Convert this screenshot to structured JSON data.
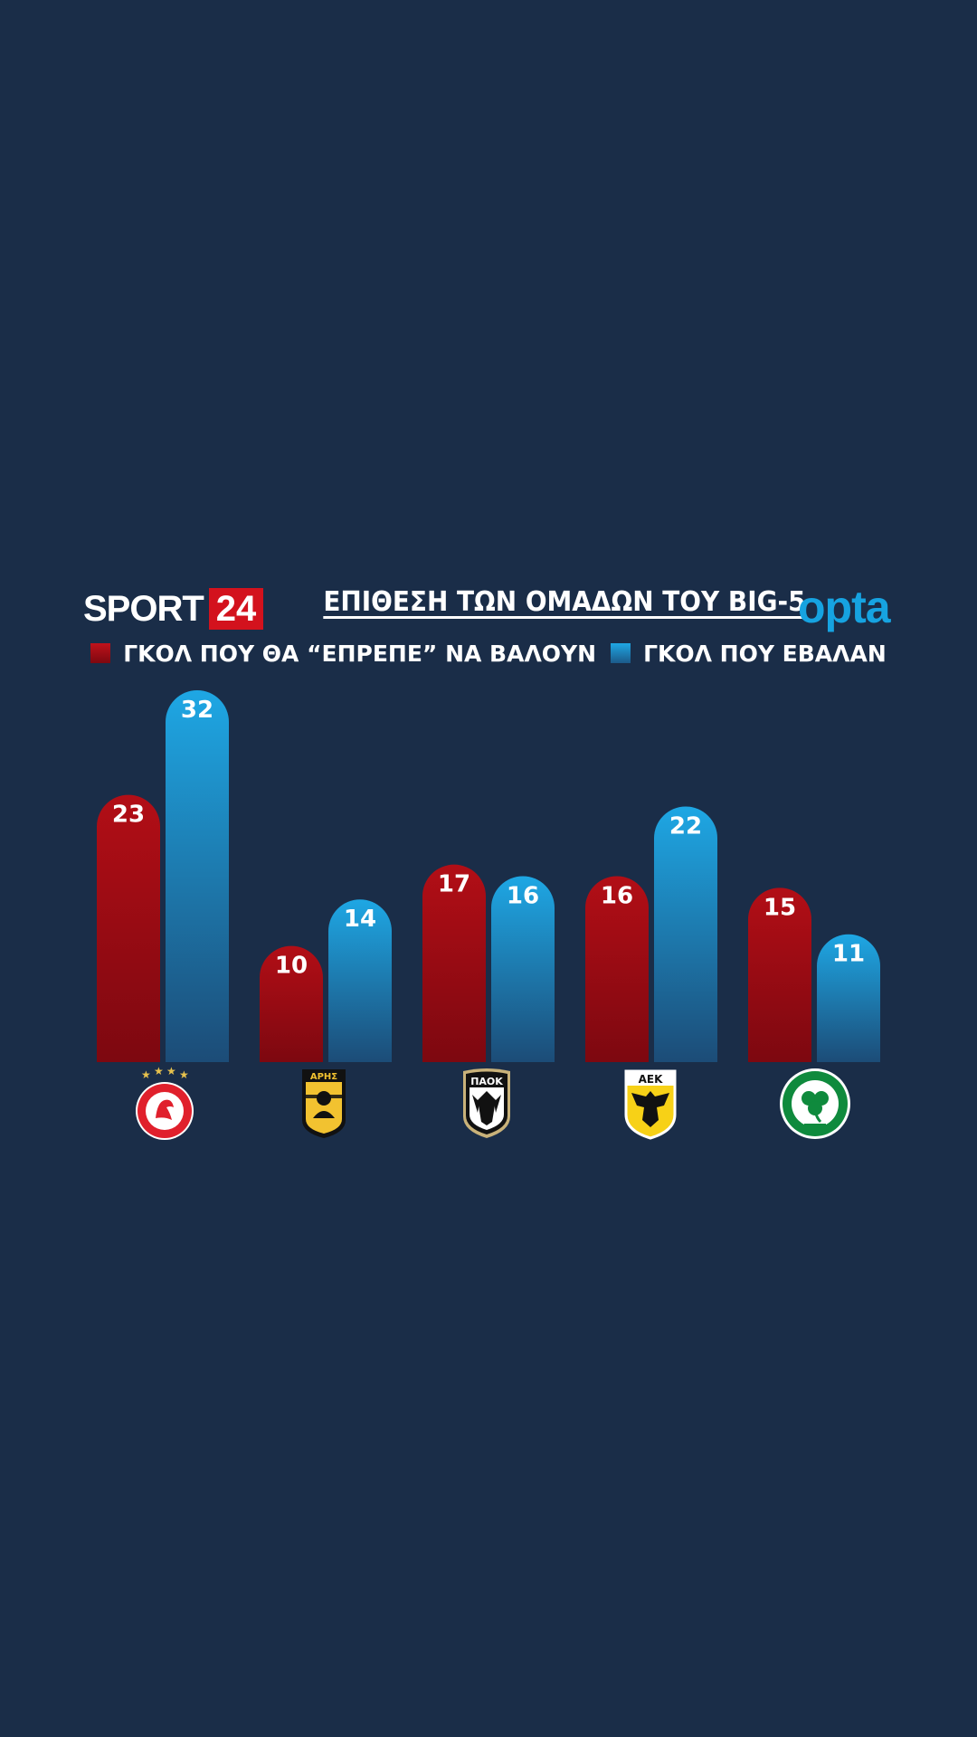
{
  "header": {
    "brand_text": "SPORT",
    "brand_badge": "24",
    "title": "ΕΠΙΘΕΣΗ ΤΩΝ ΟΜΑΔΩΝ ΤΟΥ BIG-5",
    "partner": "opta"
  },
  "colors": {
    "background": "#1a2d48",
    "expected_top": "#b20e16",
    "expected_bottom": "#7d0810",
    "actual_top": "#1ea7e4",
    "actual_bottom": "#1c4c77",
    "brand_red": "#d3121d",
    "opta_blue": "#16a3e1"
  },
  "chart_data": {
    "type": "bar",
    "title": "ΕΠΙΘΕΣΗ ΤΩΝ ΟΜΑΔΩΝ ΤΟΥ BIG-5",
    "categories": [
      "olympiacos-crest",
      "aris-crest",
      "paok-crest",
      "aek-crest",
      "panathinaikos-crest"
    ],
    "series": [
      {
        "name": "ΓΚΟΛ ΠΟΥ ΘΑ “ΕΠΡΕΠΕ” ΝΑ ΒΑΛΟΥΝ",
        "values": [
          23,
          10,
          17,
          16,
          15
        ],
        "color": "#b20e16"
      },
      {
        "name": "ΓΚΟΛ ΠΟΥ ΕΒΑΛΑΝ",
        "values": [
          32,
          14,
          16,
          22,
          11
        ],
        "color": "#1ea7e4"
      }
    ],
    "ylim": [
      0,
      32
    ],
    "data_labels": true,
    "legend": "top-center",
    "grid": false,
    "xlabel": "",
    "ylabel": ""
  }
}
